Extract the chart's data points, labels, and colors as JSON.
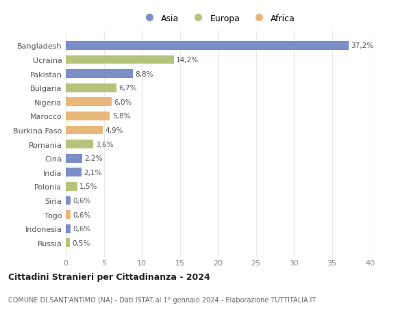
{
  "countries": [
    "Bangladesh",
    "Ucraina",
    "Pakistan",
    "Bulgaria",
    "Nigeria",
    "Marocco",
    "Burkina Faso",
    "Romania",
    "Cina",
    "India",
    "Polonia",
    "Siria",
    "Togo",
    "Indonesia",
    "Russia"
  ],
  "values": [
    37.2,
    14.2,
    8.8,
    6.7,
    6.0,
    5.8,
    4.9,
    3.6,
    2.2,
    2.1,
    1.5,
    0.6,
    0.6,
    0.6,
    0.5
  ],
  "labels": [
    "37,2%",
    "14,2%",
    "8,8%",
    "6,7%",
    "6,0%",
    "5,8%",
    "4,9%",
    "3,6%",
    "2,2%",
    "2,1%",
    "1,5%",
    "0,6%",
    "0,6%",
    "0,6%",
    "0,5%"
  ],
  "continents": [
    "Asia",
    "Europa",
    "Asia",
    "Europa",
    "Africa",
    "Africa",
    "Africa",
    "Europa",
    "Asia",
    "Asia",
    "Europa",
    "Asia",
    "Africa",
    "Asia",
    "Europa"
  ],
  "colors": {
    "Asia": "#7b8ec8",
    "Europa": "#b5c47a",
    "Africa": "#e8b87a"
  },
  "title": "Cittadini Stranieri per Cittadinanza - 2024",
  "subtitle": "COMUNE DI SANT'ANTIMO (NA) - Dati ISTAT al 1° gennaio 2024 - Elaborazione TUTTITALIA.IT",
  "xlim": [
    0,
    40
  ],
  "xticks": [
    0,
    5,
    10,
    15,
    20,
    25,
    30,
    35,
    40
  ],
  "bg_color": "#ffffff",
  "grid_color": "#e8e8e8",
  "legend_labels": [
    "Asia",
    "Europa",
    "Africa"
  ]
}
